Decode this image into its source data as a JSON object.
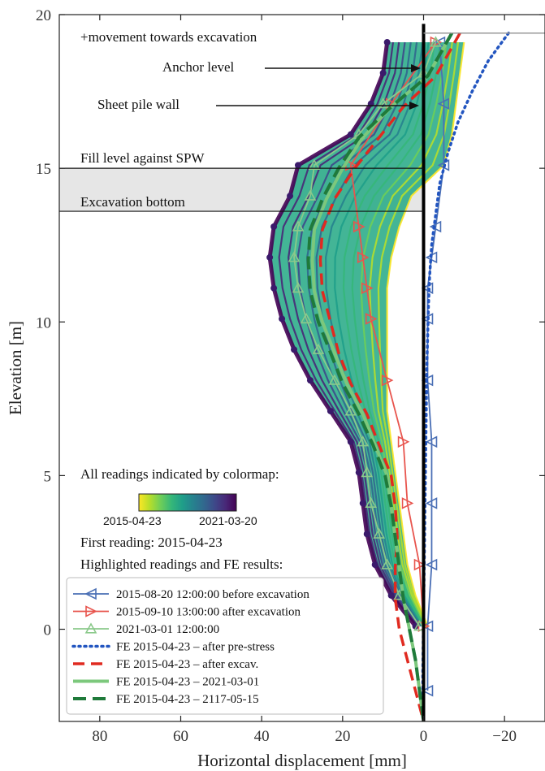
{
  "chart_data": {
    "type": "line",
    "xlabel": "Horizontal displacement [mm]",
    "ylabel": "Elevation [m]",
    "xlim": [
      90,
      -30
    ],
    "ylim": [
      -3,
      20
    ],
    "x_ticks": [
      80,
      60,
      40,
      20,
      0,
      -20
    ],
    "x_tick_labels": [
      "80",
      "60",
      "40",
      "20",
      "0",
      "−20"
    ],
    "y_ticks": [
      0,
      5,
      10,
      15,
      20
    ],
    "y_tick_labels": [
      "0",
      "5",
      "10",
      "15",
      "20"
    ],
    "grid": false,
    "levels": {
      "fill_level": 15.0,
      "excavation_bottom": 13.6,
      "wall_top": 19.4
    },
    "annotations": {
      "movement": "+movement towards excavation",
      "anchor": "Anchor level",
      "sheet_pile": "Sheet pile wall",
      "fill_level": "Fill level against SPW",
      "excavation_bottom": "Excavation bottom",
      "colormap_title": "All readings indicated by colormap:",
      "colormap_start": "2015-04-23",
      "colormap_end": "2021-03-20",
      "first_reading": "First reading:  2015-04-23",
      "highlighted": "Highlighted readings and FE results:"
    },
    "colormap": [
      "#fde725",
      "#b5de2b",
      "#6ece58",
      "#35b779",
      "#1f9e89",
      "#26828e",
      "#31688e",
      "#3e4989",
      "#482878",
      "#440154"
    ],
    "envelope": {
      "color_mid": "#22a884",
      "elevations": [
        19.1,
        18.1,
        17.1,
        16.1,
        15.1,
        14.1,
        13.1,
        12.1,
        11.1,
        10.1,
        9.1,
        8.1,
        7.1,
        6.1,
        5.1,
        4.1,
        3.1,
        2.1,
        1.1,
        0.1
      ],
      "left": [
        9,
        10,
        13,
        18,
        31,
        33,
        37,
        38,
        37,
        35,
        32,
        28,
        23,
        18,
        16,
        15,
        14,
        12,
        8,
        2
      ],
      "right": [
        -10,
        -9,
        -8,
        -7,
        -5,
        3,
        6,
        8,
        9,
        9,
        9,
        9,
        9,
        8,
        7,
        6,
        5,
        4,
        2,
        -1
      ]
    },
    "wall": {
      "x": 0,
      "y_bottom": -3,
      "y_top": 19.7
    },
    "series": [
      {
        "name": "2015-08-20 12:00:00 before excavation",
        "color": "#4a6fb5",
        "style": "solid-marker-left-triangle",
        "y": [
          19.1,
          17.1,
          15.1,
          13.1,
          12.1,
          11.1,
          10.1,
          8.1,
          6.1,
          4.1,
          2.1,
          0.1,
          -2.0
        ],
        "x": [
          -4,
          -5,
          -5,
          -3,
          -2,
          -1,
          -1,
          -1,
          -2,
          -2,
          -2,
          -1,
          -1
        ]
      },
      {
        "name": "2015-09-10 13:00:00 after excavation",
        "color": "#e8554e",
        "style": "solid-marker-right-triangle",
        "y": [
          19.1,
          17.1,
          15.1,
          13.1,
          12.1,
          11.1,
          10.1,
          8.1,
          6.1,
          4.1,
          2.1,
          0.1
        ],
        "x": [
          -3,
          8,
          18,
          16,
          15,
          14,
          13,
          9,
          5,
          4,
          1,
          0
        ]
      },
      {
        "name": "2021-03-01 12:00:00",
        "color": "#8bc98b",
        "style": "solid-marker-triangle",
        "y": [
          19.1,
          18.1,
          17.1,
          16.1,
          15.1,
          14.1,
          13.1,
          12.1,
          11.1,
          10.1,
          9.1,
          8.1,
          7.1,
          6.1,
          5.1,
          4.1,
          3.1,
          2.1,
          1.1,
          0.1
        ],
        "x": [
          -3,
          0,
          10,
          16,
          27,
          28,
          31,
          32,
          31,
          29,
          26,
          22,
          18,
          15,
          14,
          13,
          11,
          9,
          6,
          1
        ]
      },
      {
        "name": "FE 2015-04-23 – after pre-stress",
        "color": "#2255c0",
        "style": "dotted",
        "y": [
          19.4,
          18.5,
          17.5,
          16.5,
          15.5,
          14.5,
          13.5,
          12.5,
          11.5,
          10.5,
          9.5,
          8.5,
          7.5,
          6.5,
          5.5,
          4.5,
          3.5,
          2.5,
          1.5,
          0.5,
          -0.5,
          -1.5,
          -2.5,
          -3.0
        ],
        "x": [
          -21,
          -16,
          -12,
          -8.5,
          -6,
          -4,
          -3,
          -2,
          -1.5,
          -1.2,
          -1,
          -0.8,
          -0.7,
          -0.6,
          -0.5,
          -0.4,
          -0.3,
          -0.2,
          -0.1,
          0,
          0.1,
          0.2,
          0.2,
          0.1
        ]
      },
      {
        "name": "FE 2015-04-23 – after excav.",
        "color": "#e02a20",
        "style": "dashed",
        "y": [
          19.4,
          18.0,
          17.0,
          16.0,
          15.0,
          14.0,
          13.0,
          12.0,
          11.0,
          10.0,
          9.0,
          8.0,
          7.0,
          6.0,
          5.0,
          4.0,
          3.0,
          2.0,
          1.0,
          0.0,
          -1.0,
          -2.0,
          -3.0
        ],
        "x": [
          -9,
          -3,
          5,
          11,
          17,
          22,
          25,
          25.5,
          25,
          23,
          21,
          18,
          14,
          11,
          8,
          7,
          6.5,
          7,
          7,
          6,
          4,
          2,
          0
        ]
      },
      {
        "name": "FE 2015-04-23 – 2021-03-01",
        "color": "#7cc87c",
        "style": "solid-thick",
        "y": [
          19.4,
          18.0,
          17.0,
          16.0,
          15.0,
          14.0,
          13.0,
          12.0,
          11.0,
          10.0,
          9.0,
          8.0,
          7.0,
          6.0,
          5.0,
          4.0,
          3.0,
          2.0,
          1.0,
          0.0,
          -1.0,
          -2.0,
          -3.0
        ],
        "x": [
          -7,
          -1,
          8,
          15,
          20,
          24,
          27,
          27.5,
          27,
          25,
          22,
          19,
          15,
          12,
          9,
          8,
          7,
          6,
          5,
          3.5,
          2,
          1,
          0
        ]
      },
      {
        "name": "FE 2015-04-23 – 2117-05-15",
        "color": "#1f7a3a",
        "style": "dashed-thick",
        "y": [
          19.4,
          18.0,
          17.0,
          16.0,
          15.0,
          14.0,
          13.0,
          12.0,
          11.0,
          10.0,
          9.0,
          8.0,
          7.0,
          6.0,
          5.0,
          4.0,
          3.0,
          2.0,
          1.0,
          0.0,
          -1.0,
          -2.0,
          -3.0
        ],
        "x": [
          -7,
          -1,
          8,
          16,
          21,
          25,
          28,
          28.5,
          28,
          26,
          23,
          20,
          16,
          12.5,
          9.5,
          8,
          7,
          6,
          5,
          3.5,
          2,
          1,
          0
        ]
      }
    ],
    "legend_placement": "bottom-left"
  }
}
